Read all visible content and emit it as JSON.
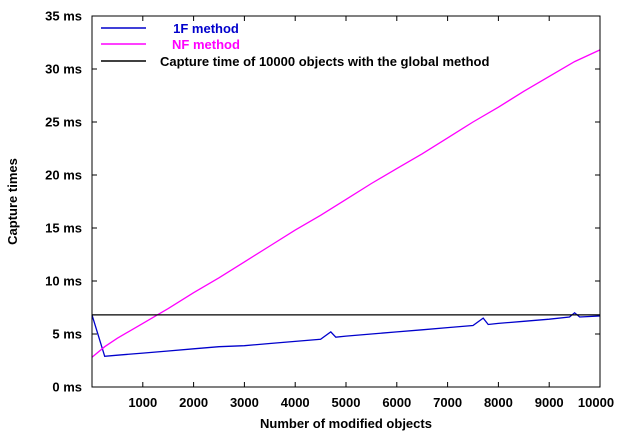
{
  "chart_data": {
    "type": "line",
    "title": "",
    "xlabel": "Number of modified objects",
    "ylabel": "Capture times",
    "xlim": [
      0,
      10000
    ],
    "ylim": [
      0,
      35
    ],
    "x_ticks": [
      1000,
      2000,
      3000,
      4000,
      5000,
      6000,
      7000,
      8000,
      9000,
      10000
    ],
    "y_ticks": [
      0,
      5,
      10,
      15,
      20,
      25,
      30,
      35
    ],
    "y_tick_labels": [
      "0 ms",
      "5 ms",
      "10 ms",
      "15 ms",
      "20 ms",
      "25 ms",
      "30 ms",
      "35 ms"
    ],
    "grid": false,
    "legend_position": "top-left",
    "series": [
      {
        "name": "1F method",
        "color": "#0000cc",
        "points": [
          [
            0,
            6.8
          ],
          [
            250,
            2.9
          ],
          [
            500,
            3.0
          ],
          [
            1000,
            3.2
          ],
          [
            1500,
            3.4
          ],
          [
            2000,
            3.6
          ],
          [
            2500,
            3.8
          ],
          [
            3000,
            3.9
          ],
          [
            3500,
            4.1
          ],
          [
            4000,
            4.3
          ],
          [
            4500,
            4.5
          ],
          [
            4700,
            5.2
          ],
          [
            4800,
            4.7
          ],
          [
            5000,
            4.8
          ],
          [
            5500,
            5.0
          ],
          [
            6000,
            5.2
          ],
          [
            6500,
            5.4
          ],
          [
            7000,
            5.6
          ],
          [
            7500,
            5.8
          ],
          [
            7700,
            6.5
          ],
          [
            7800,
            5.9
          ],
          [
            8000,
            6.0
          ],
          [
            8500,
            6.2
          ],
          [
            9000,
            6.4
          ],
          [
            9400,
            6.6
          ],
          [
            9500,
            7.0
          ],
          [
            9600,
            6.6
          ],
          [
            10000,
            6.7
          ]
        ]
      },
      {
        "name": "NF method",
        "color": "#ff00ff",
        "points": [
          [
            0,
            2.8
          ],
          [
            250,
            3.8
          ],
          [
            500,
            4.6
          ],
          [
            1000,
            6.0
          ],
          [
            1500,
            7.4
          ],
          [
            2000,
            8.9
          ],
          [
            2500,
            10.3
          ],
          [
            3000,
            11.8
          ],
          [
            3500,
            13.3
          ],
          [
            4000,
            14.8
          ],
          [
            4500,
            16.2
          ],
          [
            5000,
            17.7
          ],
          [
            5500,
            19.2
          ],
          [
            6000,
            20.6
          ],
          [
            6500,
            22.0
          ],
          [
            7000,
            23.5
          ],
          [
            7500,
            25.0
          ],
          [
            8000,
            26.4
          ],
          [
            8500,
            27.9
          ],
          [
            9000,
            29.3
          ],
          [
            9500,
            30.7
          ],
          [
            10000,
            31.8
          ]
        ]
      },
      {
        "name": "Capture time of 10000 objects with the global method",
        "color": "#000000",
        "points": [
          [
            0,
            6.8
          ],
          [
            10000,
            6.8
          ]
        ]
      }
    ]
  }
}
